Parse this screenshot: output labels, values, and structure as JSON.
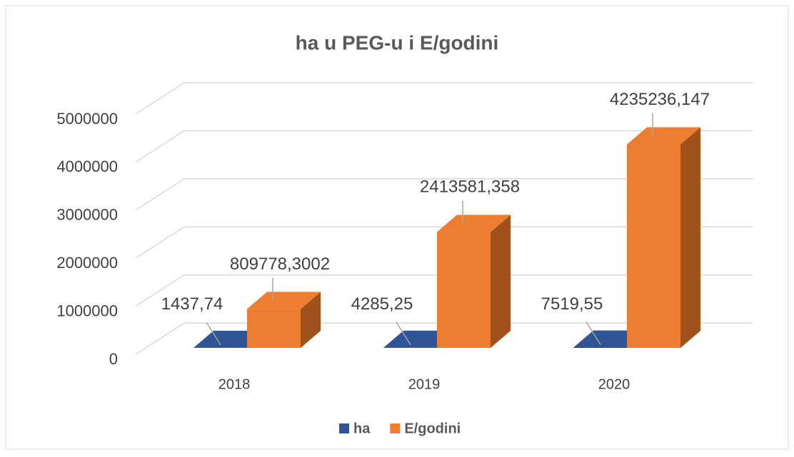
{
  "chart_data": {
    "type": "bar3d",
    "title": "ha u PEG-u i E/godini",
    "categories": [
      "2018",
      "2019",
      "2020"
    ],
    "series": [
      {
        "name": "ha",
        "color": "#2f5597",
        "side": "#1f3b6a",
        "values": [
          1437.74,
          4285.25,
          7519.55
        ],
        "value_labels": [
          "1437,74",
          "4285,25",
          "7519,55"
        ]
      },
      {
        "name": "E/godini",
        "color": "#ed7d31",
        "side": "#a0511c",
        "values": [
          809778.3002,
          2413581.358,
          4235236.147
        ],
        "value_labels": [
          "809778,3002",
          "2413581,358",
          "4235236,147"
        ]
      }
    ],
    "ylim": [
      0,
      5000000
    ],
    "yticks": [
      0,
      1000000,
      2000000,
      3000000,
      4000000,
      5000000
    ],
    "grid": true,
    "legend": "bottom"
  }
}
